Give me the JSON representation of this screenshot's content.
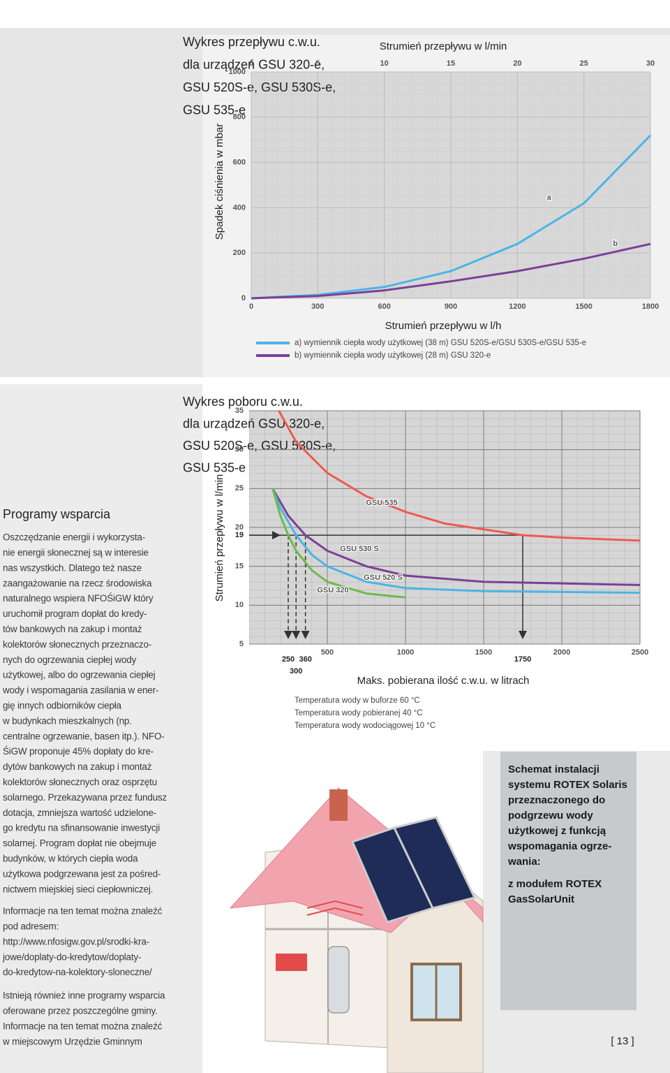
{
  "text": {
    "heading": "Programy wsparcia",
    "paragraphs": [
      [
        "Oszczędzanie energii i wykorzysta-",
        "nie energii słonecznej są w interesie",
        "nas wszystkich. Dlatego też nasze",
        "zaangażowanie na rzecz środowiska",
        "naturalnego wspiera NFOŚiGW który",
        "uruchomił program dopłat do kredy-",
        "tów bankowych na zakup i montaż",
        "kolektorów słonecznych przeznaczo-",
        "nych do ogrzewania ciepłej wody",
        "użytkowej, albo do ogrzewania ciepłej",
        "wody i wspomagania zasilania w ener-",
        "gię innych odbiorników ciepła",
        "w budynkach mieszkalnych (np.",
        "centralne ogrzewanie, basen itp.). NFO-",
        "ŚiGW proponuje 45% dopłaty do kre-",
        "dytów bankowych na zakup i montaż",
        "kolektorów słonecznych oraz osprzętu",
        "solarnego. Przekazywana przez fundusz",
        "dotacja, zmniejsza wartość udzielone-",
        "go kredytu na sfinansowanie inwestycji",
        "solarnej. Program dopłat nie obejmuje",
        "budynków, w których ciepła woda",
        "użytkowa podgrzewana jest za pośred-",
        "nictwem miejskiej sieci ciepłowniczej."
      ],
      [
        "Informacje na ten temat można znaleźć",
        "pod adresem:",
        "http://www.nfosigw.gov.pl/srodki-kra-",
        "jowe/doplaty-do-kredytow/doplaty-",
        "do-kredytow-na-kolektory-sloneczne/"
      ],
      [
        "Istnieją również inne programy wsparcia",
        "oferowane przez poszczególne gminy.",
        "Informacje na ten temat można znaleźć",
        "w miejscowym Urzędzie Gminnym"
      ]
    ],
    "box": [
      [
        "Schemat instalacji",
        "systemu ROTEX Solaris",
        "przeznaczonego do",
        "podgrzewu wody",
        "użytkowej z funkcją",
        "wspomagania ogrze-",
        "wania:"
      ],
      [
        "z modułem ROTEX",
        "GasSolarUnit"
      ]
    ],
    "page_number": "[ 13 ]"
  },
  "chart_data": [
    {
      "type": "line",
      "title_lines": [
        "Wykres przepływu c.w.u.",
        "dla urządzeń GSU 320-e,",
        "GSU 520S-e, GSU 530S-e,",
        "GSU 535-e"
      ],
      "x_label": "Strumień przepływu w l/h",
      "x2_label": "Strumień przepływu w l/min",
      "y_label": "Spadek ciśnienia w mbar",
      "x": [
        0,
        300,
        600,
        900,
        1200,
        1500,
        1800
      ],
      "xlim": [
        0,
        1800
      ],
      "xticks": [
        0,
        300,
        600,
        900,
        1200,
        1500,
        1800
      ],
      "x2lim": [
        0,
        30
      ],
      "x2ticks": [
        0,
        5,
        10,
        15,
        20,
        25,
        30
      ],
      "ylim": [
        0,
        1000
      ],
      "yticks": [
        0,
        200,
        400,
        600,
        800,
        1000
      ],
      "grid": true,
      "series": [
        {
          "name": "a) wymiennik ciepła wody użytkowej (38 m) GSU 520S-e/GSU 530S-e/GSU 535-e",
          "label": "a",
          "color": "#4cb4e6",
          "values": [
            0,
            15,
            50,
            120,
            240,
            420,
            720
          ]
        },
        {
          "name": "b) wymiennik ciepła wody użytkowej (28 m) GSU 320-e",
          "label": "b",
          "color": "#7b3f98",
          "values": [
            0,
            10,
            35,
            75,
            120,
            175,
            240
          ]
        }
      ]
    },
    {
      "type": "line",
      "title_lines": [
        "Wykres poboru c.w.u.",
        "dla urządzeń GSU 320-e,",
        "GSU 520S-e, GSU 530S-e,",
        "GSU 535-e"
      ],
      "x_label": "Maks. pobierana ilość c.w.u. w litrach",
      "y_label": "Strumień przepływu w l/min",
      "xlim": [
        0,
        2500
      ],
      "xticks": [
        500,
        1000,
        1500,
        2000,
        2500
      ],
      "ylim": [
        5,
        35
      ],
      "yticks": [
        5,
        10,
        15,
        20,
        25,
        30,
        35
      ],
      "grid": true,
      "marked_y": 19,
      "marked_x": [
        250,
        300,
        360,
        1750
      ],
      "notes": [
        "Temperatura wody w buforze 60 °C",
        "Temperatura wody pobieranej 40 °C",
        "Temperatura wody wodociągowej 10 °C"
      ],
      "series": [
        {
          "name": "GSU 535",
          "color": "#ee5a4e",
          "x": [
            190,
            300,
            500,
            750,
            1000,
            1250,
            1750,
            2000,
            2500
          ],
          "values": [
            35,
            31,
            27,
            24,
            22,
            20.5,
            19,
            18.7,
            18.3
          ]
        },
        {
          "name": "GSU 530 S",
          "color": "#7b3f98",
          "x": [
            150,
            250,
            360,
            500,
            750,
            1000,
            1500,
            2500
          ],
          "values": [
            25,
            21.5,
            19,
            17,
            15,
            13.8,
            13,
            12.6
          ]
        },
        {
          "name": "GSU 520 S",
          "color": "#4cb4e6",
          "x": [
            150,
            200,
            300,
            400,
            500,
            750,
            1000,
            1500,
            2500
          ],
          "values": [
            25,
            22.5,
            19,
            16.5,
            15,
            13,
            12.2,
            11.8,
            11.6
          ]
        },
        {
          "name": "GSU 320",
          "color": "#6dbb4a",
          "x": [
            150,
            200,
            250,
            300,
            400,
            500,
            750,
            1000
          ],
          "values": [
            25,
            21.5,
            19,
            17,
            14.5,
            13,
            11.5,
            11
          ]
        }
      ]
    }
  ]
}
